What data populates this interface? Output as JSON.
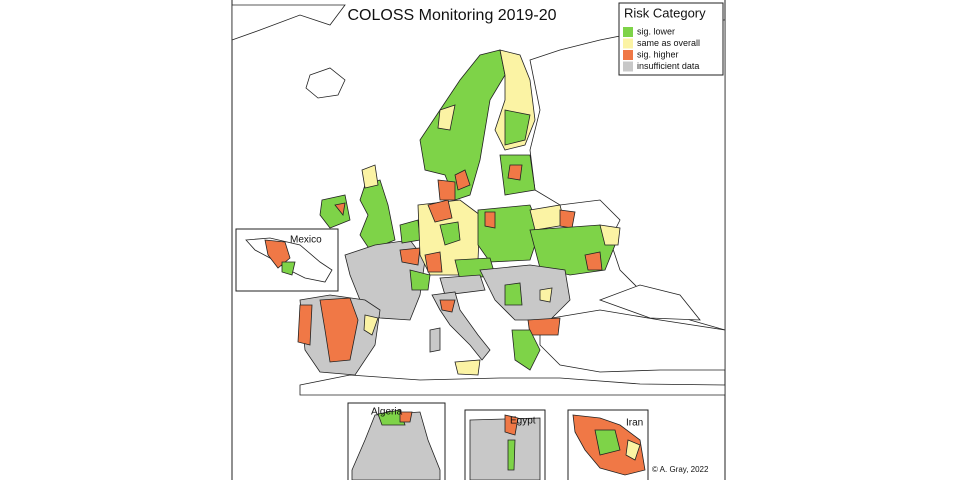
{
  "title": "COLOSS Monitoring 2019-20",
  "legend": {
    "title": "Risk Category",
    "items": [
      {
        "label": "sig. lower",
        "color": "#7ed348"
      },
      {
        "label": "same as overall",
        "color": "#fbf3a4"
      },
      {
        "label": "sig. higher",
        "color": "#f07846"
      },
      {
        "label": "insufficient data",
        "color": "#c8c8c8"
      }
    ]
  },
  "insets": [
    {
      "label": "Mexico"
    },
    {
      "label": "Algeria"
    },
    {
      "label": "Egypt"
    },
    {
      "label": "Iran"
    }
  ],
  "credit": "© A. Gray, 2022"
}
